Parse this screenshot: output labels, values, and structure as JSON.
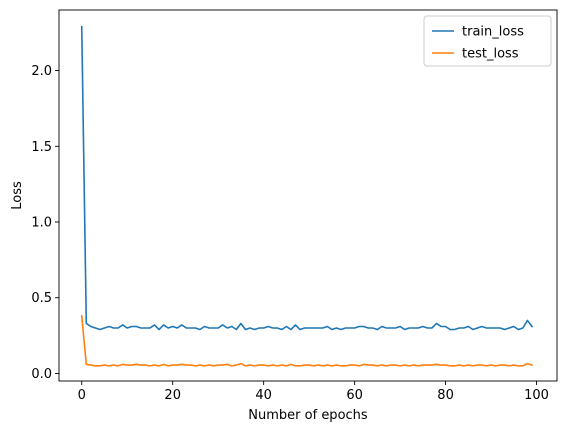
{
  "chart_data": {
    "type": "line",
    "xlabel": "Number of epochs",
    "ylabel": "Loss",
    "xlim": [
      -5,
      104.5
    ],
    "ylim": [
      -0.05,
      2.4
    ],
    "xticks": [
      0,
      20,
      40,
      60,
      80,
      100
    ],
    "yticks": [
      0.0,
      0.5,
      1.0,
      1.5,
      2.0
    ],
    "grid": false,
    "legend_position": "top-right",
    "series": [
      {
        "name": "train_loss",
        "color": "#1f77b4",
        "x": [
          0,
          1,
          2,
          3,
          4,
          5,
          6,
          7,
          8,
          9,
          10,
          11,
          12,
          13,
          14,
          15,
          16,
          17,
          18,
          19,
          20,
          21,
          22,
          23,
          24,
          25,
          26,
          27,
          28,
          29,
          30,
          31,
          32,
          33,
          34,
          35,
          36,
          37,
          38,
          39,
          40,
          41,
          42,
          43,
          44,
          45,
          46,
          47,
          48,
          49,
          50,
          51,
          52,
          53,
          54,
          55,
          56,
          57,
          58,
          59,
          60,
          61,
          62,
          63,
          64,
          65,
          66,
          67,
          68,
          69,
          70,
          71,
          72,
          73,
          74,
          75,
          76,
          77,
          78,
          79,
          80,
          81,
          82,
          83,
          84,
          85,
          86,
          87,
          88,
          89,
          90,
          91,
          92,
          93,
          94,
          95,
          96,
          97,
          98,
          99
        ],
        "values": [
          2.29,
          0.33,
          0.31,
          0.3,
          0.29,
          0.3,
          0.31,
          0.3,
          0.3,
          0.32,
          0.3,
          0.31,
          0.31,
          0.3,
          0.3,
          0.3,
          0.32,
          0.29,
          0.32,
          0.3,
          0.31,
          0.3,
          0.32,
          0.3,
          0.3,
          0.3,
          0.29,
          0.31,
          0.3,
          0.3,
          0.3,
          0.32,
          0.3,
          0.31,
          0.29,
          0.33,
          0.29,
          0.3,
          0.29,
          0.3,
          0.3,
          0.31,
          0.3,
          0.3,
          0.29,
          0.31,
          0.29,
          0.32,
          0.29,
          0.3,
          0.3,
          0.3,
          0.3,
          0.3,
          0.31,
          0.29,
          0.3,
          0.29,
          0.3,
          0.3,
          0.3,
          0.31,
          0.31,
          0.3,
          0.3,
          0.29,
          0.31,
          0.3,
          0.3,
          0.3,
          0.31,
          0.29,
          0.3,
          0.3,
          0.3,
          0.31,
          0.3,
          0.3,
          0.33,
          0.31,
          0.31,
          0.29,
          0.29,
          0.3,
          0.3,
          0.31,
          0.29,
          0.3,
          0.31,
          0.3,
          0.3,
          0.3,
          0.3,
          0.29,
          0.3,
          0.31,
          0.29,
          0.3,
          0.35,
          0.31
        ]
      },
      {
        "name": "test_loss",
        "color": "#ff7f0e",
        "x": [
          0,
          1,
          2,
          3,
          4,
          5,
          6,
          7,
          8,
          9,
          10,
          11,
          12,
          13,
          14,
          15,
          16,
          17,
          18,
          19,
          20,
          21,
          22,
          23,
          24,
          25,
          26,
          27,
          28,
          29,
          30,
          31,
          32,
          33,
          34,
          35,
          36,
          37,
          38,
          39,
          40,
          41,
          42,
          43,
          44,
          45,
          46,
          47,
          48,
          49,
          50,
          51,
          52,
          53,
          54,
          55,
          56,
          57,
          58,
          59,
          60,
          61,
          62,
          63,
          64,
          65,
          66,
          67,
          68,
          69,
          70,
          71,
          72,
          73,
          74,
          75,
          76,
          77,
          78,
          79,
          80,
          81,
          82,
          83,
          84,
          85,
          86,
          87,
          88,
          89,
          90,
          91,
          92,
          93,
          94,
          95,
          96,
          97,
          98,
          99
        ],
        "values": [
          0.38,
          0.06,
          0.055,
          0.05,
          0.05,
          0.055,
          0.05,
          0.055,
          0.05,
          0.06,
          0.055,
          0.055,
          0.06,
          0.055,
          0.055,
          0.05,
          0.055,
          0.05,
          0.06,
          0.05,
          0.055,
          0.055,
          0.06,
          0.055,
          0.055,
          0.05,
          0.055,
          0.05,
          0.055,
          0.05,
          0.055,
          0.055,
          0.06,
          0.05,
          0.055,
          0.065,
          0.05,
          0.055,
          0.05,
          0.055,
          0.055,
          0.05,
          0.055,
          0.05,
          0.055,
          0.05,
          0.06,
          0.05,
          0.05,
          0.055,
          0.055,
          0.05,
          0.055,
          0.05,
          0.055,
          0.05,
          0.055,
          0.05,
          0.05,
          0.055,
          0.055,
          0.05,
          0.06,
          0.055,
          0.055,
          0.05,
          0.055,
          0.05,
          0.055,
          0.055,
          0.05,
          0.055,
          0.05,
          0.055,
          0.05,
          0.055,
          0.055,
          0.055,
          0.06,
          0.055,
          0.055,
          0.05,
          0.05,
          0.055,
          0.05,
          0.055,
          0.05,
          0.055,
          0.055,
          0.05,
          0.055,
          0.05,
          0.055,
          0.055,
          0.05,
          0.055,
          0.05,
          0.05,
          0.065,
          0.055
        ]
      }
    ]
  }
}
